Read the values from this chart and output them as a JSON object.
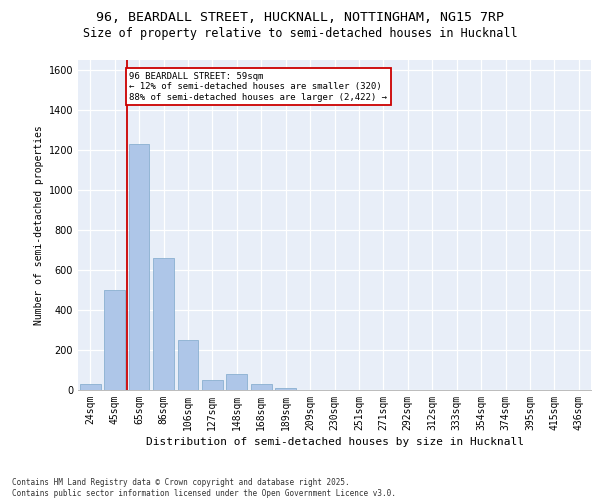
{
  "title_line1": "96, BEARDALL STREET, HUCKNALL, NOTTINGHAM, NG15 7RP",
  "title_line2": "Size of property relative to semi-detached houses in Hucknall",
  "xlabel": "Distribution of semi-detached houses by size in Hucknall",
  "ylabel": "Number of semi-detached properties",
  "categories": [
    "24sqm",
    "45sqm",
    "65sqm",
    "86sqm",
    "106sqm",
    "127sqm",
    "148sqm",
    "168sqm",
    "189sqm",
    "209sqm",
    "230sqm",
    "251sqm",
    "271sqm",
    "292sqm",
    "312sqm",
    "333sqm",
    "354sqm",
    "374sqm",
    "395sqm",
    "415sqm",
    "436sqm"
  ],
  "values": [
    28,
    500,
    1230,
    660,
    250,
    48,
    78,
    28,
    12,
    0,
    0,
    0,
    0,
    0,
    0,
    0,
    0,
    0,
    0,
    0,
    0
  ],
  "bar_color": "#aec6e8",
  "bar_edge_color": "#8ab0d0",
  "vline_x": 1.5,
  "vline_color": "#cc0000",
  "annotation_title": "96 BEARDALL STREET: 59sqm",
  "annotation_line2": "← 12% of semi-detached houses are smaller (320)",
  "annotation_line3": "88% of semi-detached houses are larger (2,422) →",
  "annotation_box_edgecolor": "#cc0000",
  "ylim": [
    0,
    1650
  ],
  "yticks": [
    0,
    200,
    400,
    600,
    800,
    1000,
    1200,
    1400,
    1600
  ],
  "background_color": "#e8eef8",
  "footer": "Contains HM Land Registry data © Crown copyright and database right 2025.\nContains public sector information licensed under the Open Government Licence v3.0.",
  "title_fontsize": 9.5,
  "subtitle_fontsize": 8.5,
  "ylabel_fontsize": 7,
  "xlabel_fontsize": 8,
  "tick_fontsize": 7,
  "annot_fontsize": 6.5,
  "footer_fontsize": 5.5
}
